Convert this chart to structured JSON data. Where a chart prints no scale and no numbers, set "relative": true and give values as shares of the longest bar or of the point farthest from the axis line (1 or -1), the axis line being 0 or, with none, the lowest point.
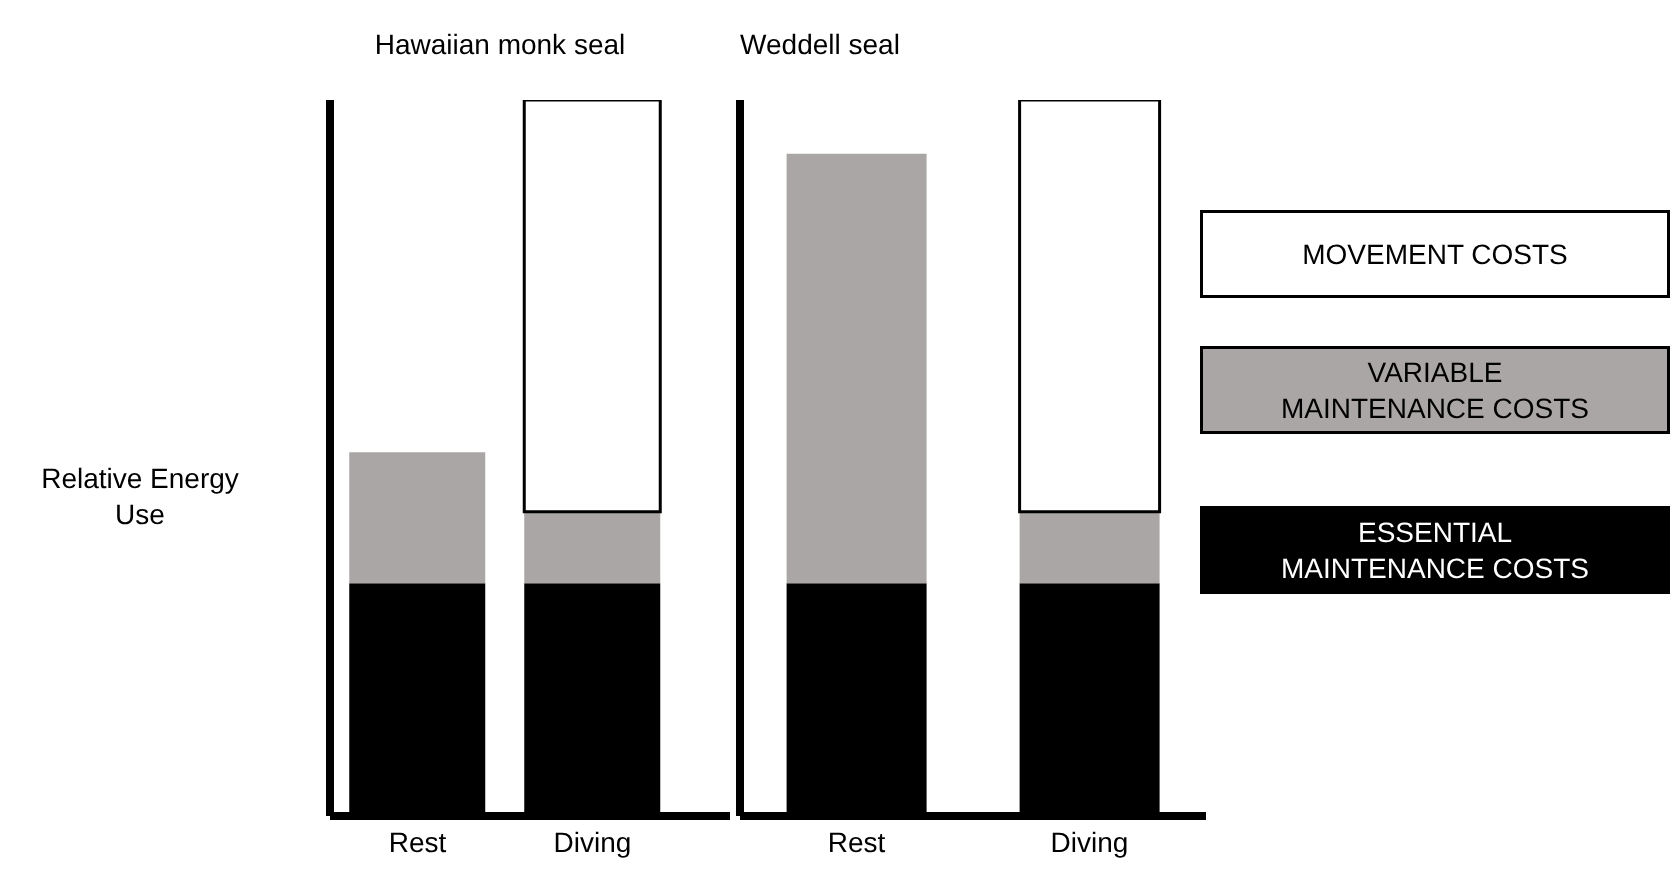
{
  "chart_data": [
    {
      "type": "bar",
      "title": "Hawaiian monk seal",
      "ylabel": "Relative Energy Use",
      "categories": [
        "Rest",
        "Diving"
      ],
      "stacked": true,
      "relative": true,
      "legend": false,
      "grid": false,
      "series": [
        {
          "color": "#000000",
          "values": [
            0.325,
            0.325
          ]
        },
        {
          "color": "#aaa6a6",
          "values": [
            0.183,
            0.1
          ]
        },
        {
          "color": "#ffffff",
          "values": [
            null,
            0.575
          ]
        }
      ]
    },
    {
      "type": "bar",
      "title": "Weddell seal",
      "categories": [
        "Rest",
        "Diving"
      ],
      "stacked": true,
      "relative": true,
      "legend": "right",
      "grid": false,
      "series": [
        {
          "name": "ESSENTIAL MAINTENANCE COSTS",
          "color": "#000000",
          "values": [
            0.325,
            0.325
          ]
        },
        {
          "name": "VARIABLE MAINTENANCE COSTS",
          "color": "#aaa6a6",
          "values": [
            0.6,
            0.1
          ]
        },
        {
          "name": "MOVEMENT COSTS",
          "color": "#ffffff",
          "values": [
            null,
            0.575
          ]
        }
      ]
    }
  ]
}
